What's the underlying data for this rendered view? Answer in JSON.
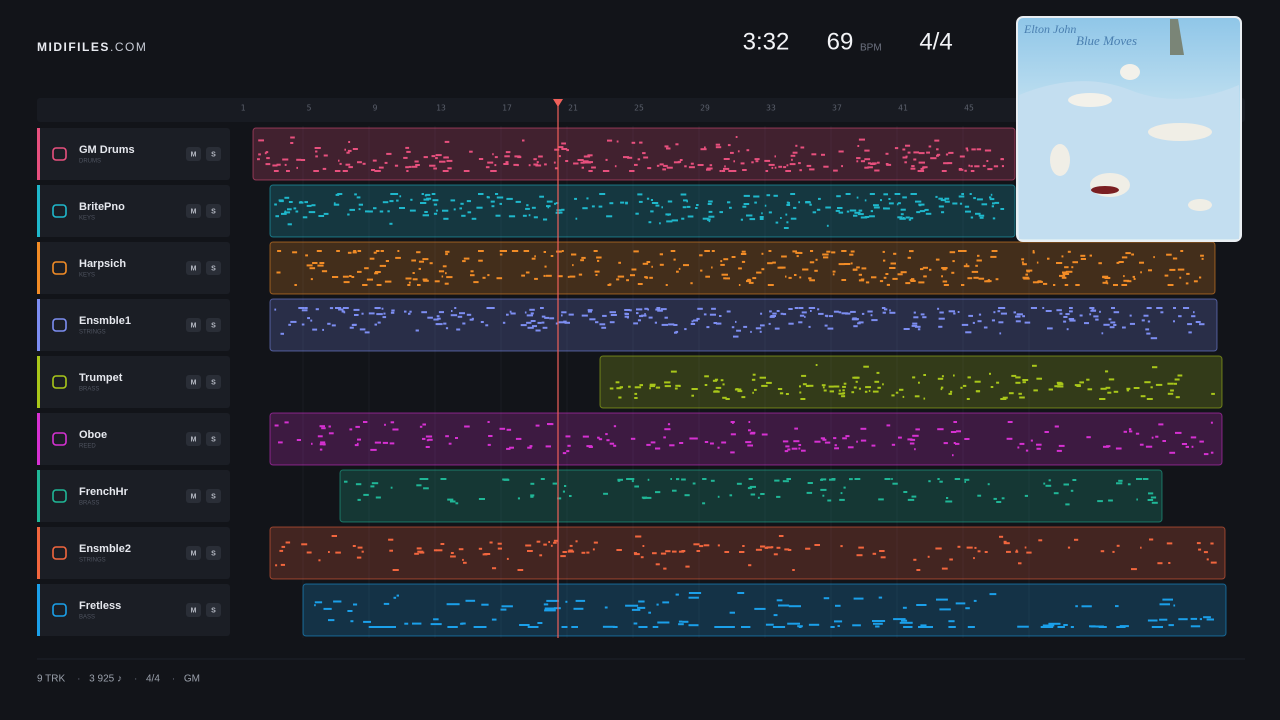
{
  "header": {
    "brand": "MIDIFILES",
    "brand_suffix": ".COM",
    "duration": "3:32",
    "tempo": "69",
    "tempo_unit": "BPM",
    "meter": "4/4"
  },
  "ruler": [
    "1",
    "5",
    "9",
    "13",
    "17",
    "21",
    "25",
    "29",
    "33",
    "37",
    "41",
    "45"
  ],
  "mute_label": "M",
  "solo_label": "S",
  "tracks": [
    {
      "name": "GM Drums",
      "family": "DRUMS",
      "color": "#e8507e"
    },
    {
      "name": "BritePno",
      "family": "KEYS",
      "color": "#1fb8cc"
    },
    {
      "name": "Harpsich",
      "family": "KEYS",
      "color": "#f28c26"
    },
    {
      "name": "Ensmble1",
      "family": "STRINGS",
      "color": "#7d8ef2"
    },
    {
      "name": "Trumpet",
      "family": "BRASS",
      "color": "#a9c71a"
    },
    {
      "name": "Oboe",
      "family": "REED",
      "color": "#d631d2"
    },
    {
      "name": "FrenchHr",
      "family": "BRASS",
      "color": "#20b797"
    },
    {
      "name": "Ensmble2",
      "family": "STRINGS",
      "color": "#f2663e"
    },
    {
      "name": "Fretless",
      "family": "BASS",
      "color": "#1ba0ea"
    }
  ],
  "album": {
    "artist": "Elton John",
    "title": "Blue Moves"
  },
  "footer": {
    "items": [
      "9 TRK",
      "3 925 ♪",
      "4/4",
      "GM"
    ],
    "separator": "·"
  }
}
